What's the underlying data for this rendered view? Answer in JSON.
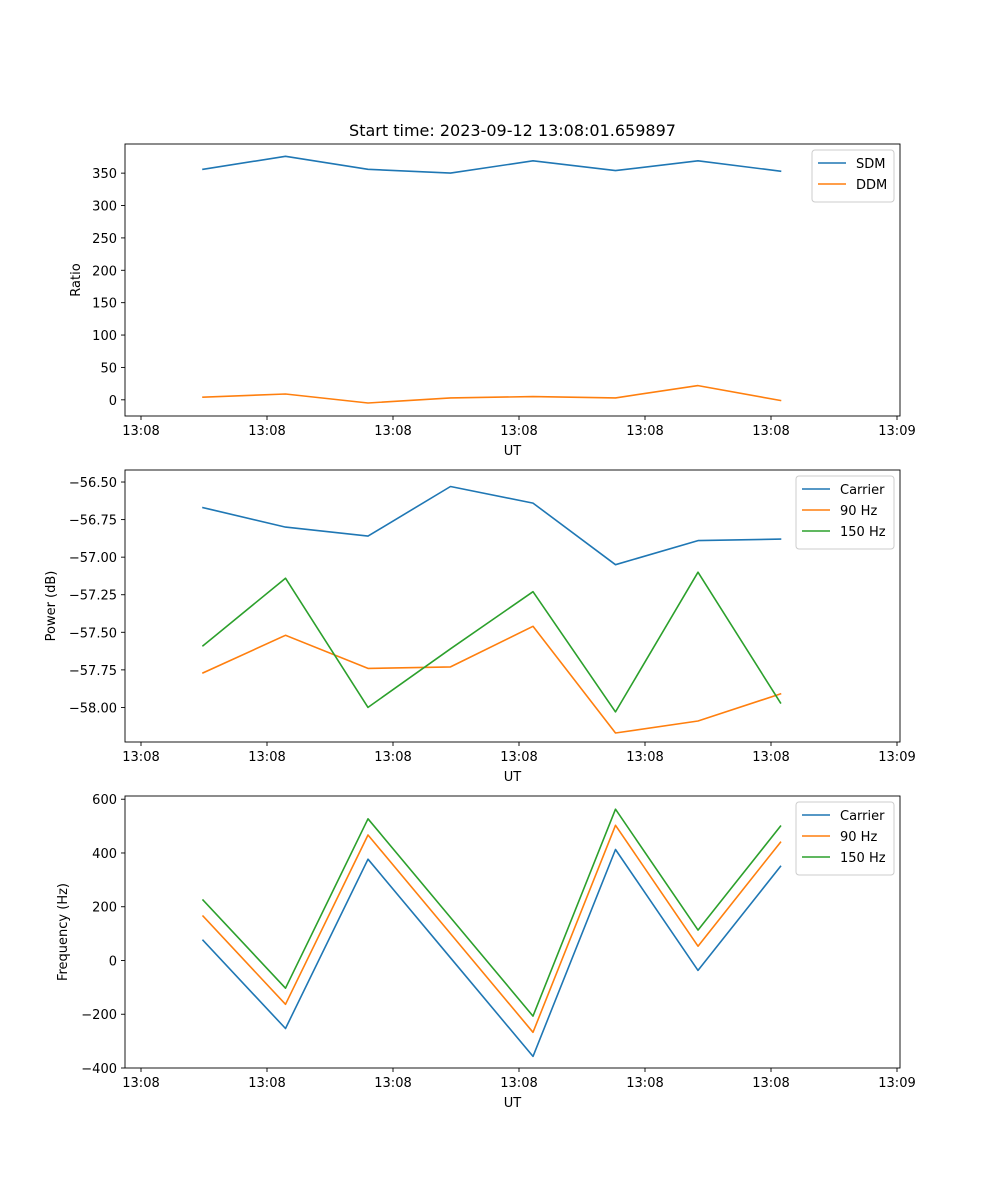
{
  "chart_data": [
    {
      "type": "line",
      "title": "Start time: 2023-09-12 13:08:01.659897",
      "xlabel": "UT",
      "ylabel": "Ratio",
      "x_tick_labels": [
        "13:08",
        "13:08",
        "13:08",
        "13:08",
        "13:08",
        "13:08",
        "13:08"
      ],
      "x_tick_last": "13:09",
      "ylim": [
        -25,
        395
      ],
      "yticks": [
        0,
        50,
        100,
        150,
        200,
        250,
        300,
        350
      ],
      "legend_position": "top-right",
      "series": [
        {
          "name": "SDM",
          "color": "#1f77b4",
          "values": [
            356,
            376,
            356,
            350,
            369,
            354,
            369,
            353
          ]
        },
        {
          "name": "DDM",
          "color": "#ff7f0e",
          "values": [
            4,
            9,
            -5,
            3,
            5,
            3,
            22,
            -1
          ]
        }
      ]
    },
    {
      "type": "line",
      "title": "",
      "xlabel": "UT",
      "ylabel": "Power (dB)",
      "x_tick_labels": [
        "13:08",
        "13:08",
        "13:08",
        "13:08",
        "13:08",
        "13:08",
        "13:08"
      ],
      "x_tick_last": "13:09",
      "ylim": [
        -58.23,
        -56.42
      ],
      "yticks": [
        -58.0,
        -57.75,
        -57.5,
        -57.25,
        -57.0,
        -56.75,
        -56.5
      ],
      "ytick_labels": [
        "−58.00",
        "−57.75",
        "−57.50",
        "−57.25",
        "−57.00",
        "−56.75",
        "−56.50"
      ],
      "legend_position": "top-right",
      "series": [
        {
          "name": "Carrier",
          "color": "#1f77b4",
          "values": [
            -56.67,
            -56.8,
            -56.86,
            -56.53,
            -56.64,
            -57.05,
            -56.89,
            -56.88
          ]
        },
        {
          "name": "90 Hz",
          "color": "#ff7f0e",
          "values": [
            -57.77,
            -57.52,
            -57.74,
            -57.73,
            -57.46,
            -58.17,
            -58.09,
            -57.91
          ]
        },
        {
          "name": "150 Hz",
          "color": "#2ca02c",
          "values": [
            -57.59,
            -57.14,
            -58.0,
            -57.61,
            -57.23,
            -58.03,
            -57.1,
            -57.97
          ]
        }
      ]
    },
    {
      "type": "line",
      "title": "",
      "xlabel": "UT",
      "ylabel": "Frequency (Hz)",
      "x_tick_labels": [
        "13:08",
        "13:08",
        "13:08",
        "13:08",
        "13:08",
        "13:08",
        "13:08"
      ],
      "x_tick_last": "13:09",
      "ylim": [
        -400,
        612
      ],
      "yticks": [
        -400,
        -200,
        0,
        200,
        400,
        600
      ],
      "ytick_labels": [
        "−400",
        "−200",
        "0",
        "200",
        "400",
        "600"
      ],
      "legend_position": "top-right",
      "series": [
        {
          "name": "Carrier",
          "color": "#1f77b4",
          "values": [
            75,
            -253,
            377,
            10,
            -357,
            413,
            -37,
            350
          ]
        },
        {
          "name": "90 Hz",
          "color": "#ff7f0e",
          "values": [
            165,
            -163,
            467,
            100,
            -267,
            503,
            53,
            440
          ]
        },
        {
          "name": "150 Hz",
          "color": "#2ca02c",
          "values": [
            225,
            -103,
            527,
            160,
            -207,
            563,
            113,
            500
          ]
        }
      ]
    }
  ]
}
